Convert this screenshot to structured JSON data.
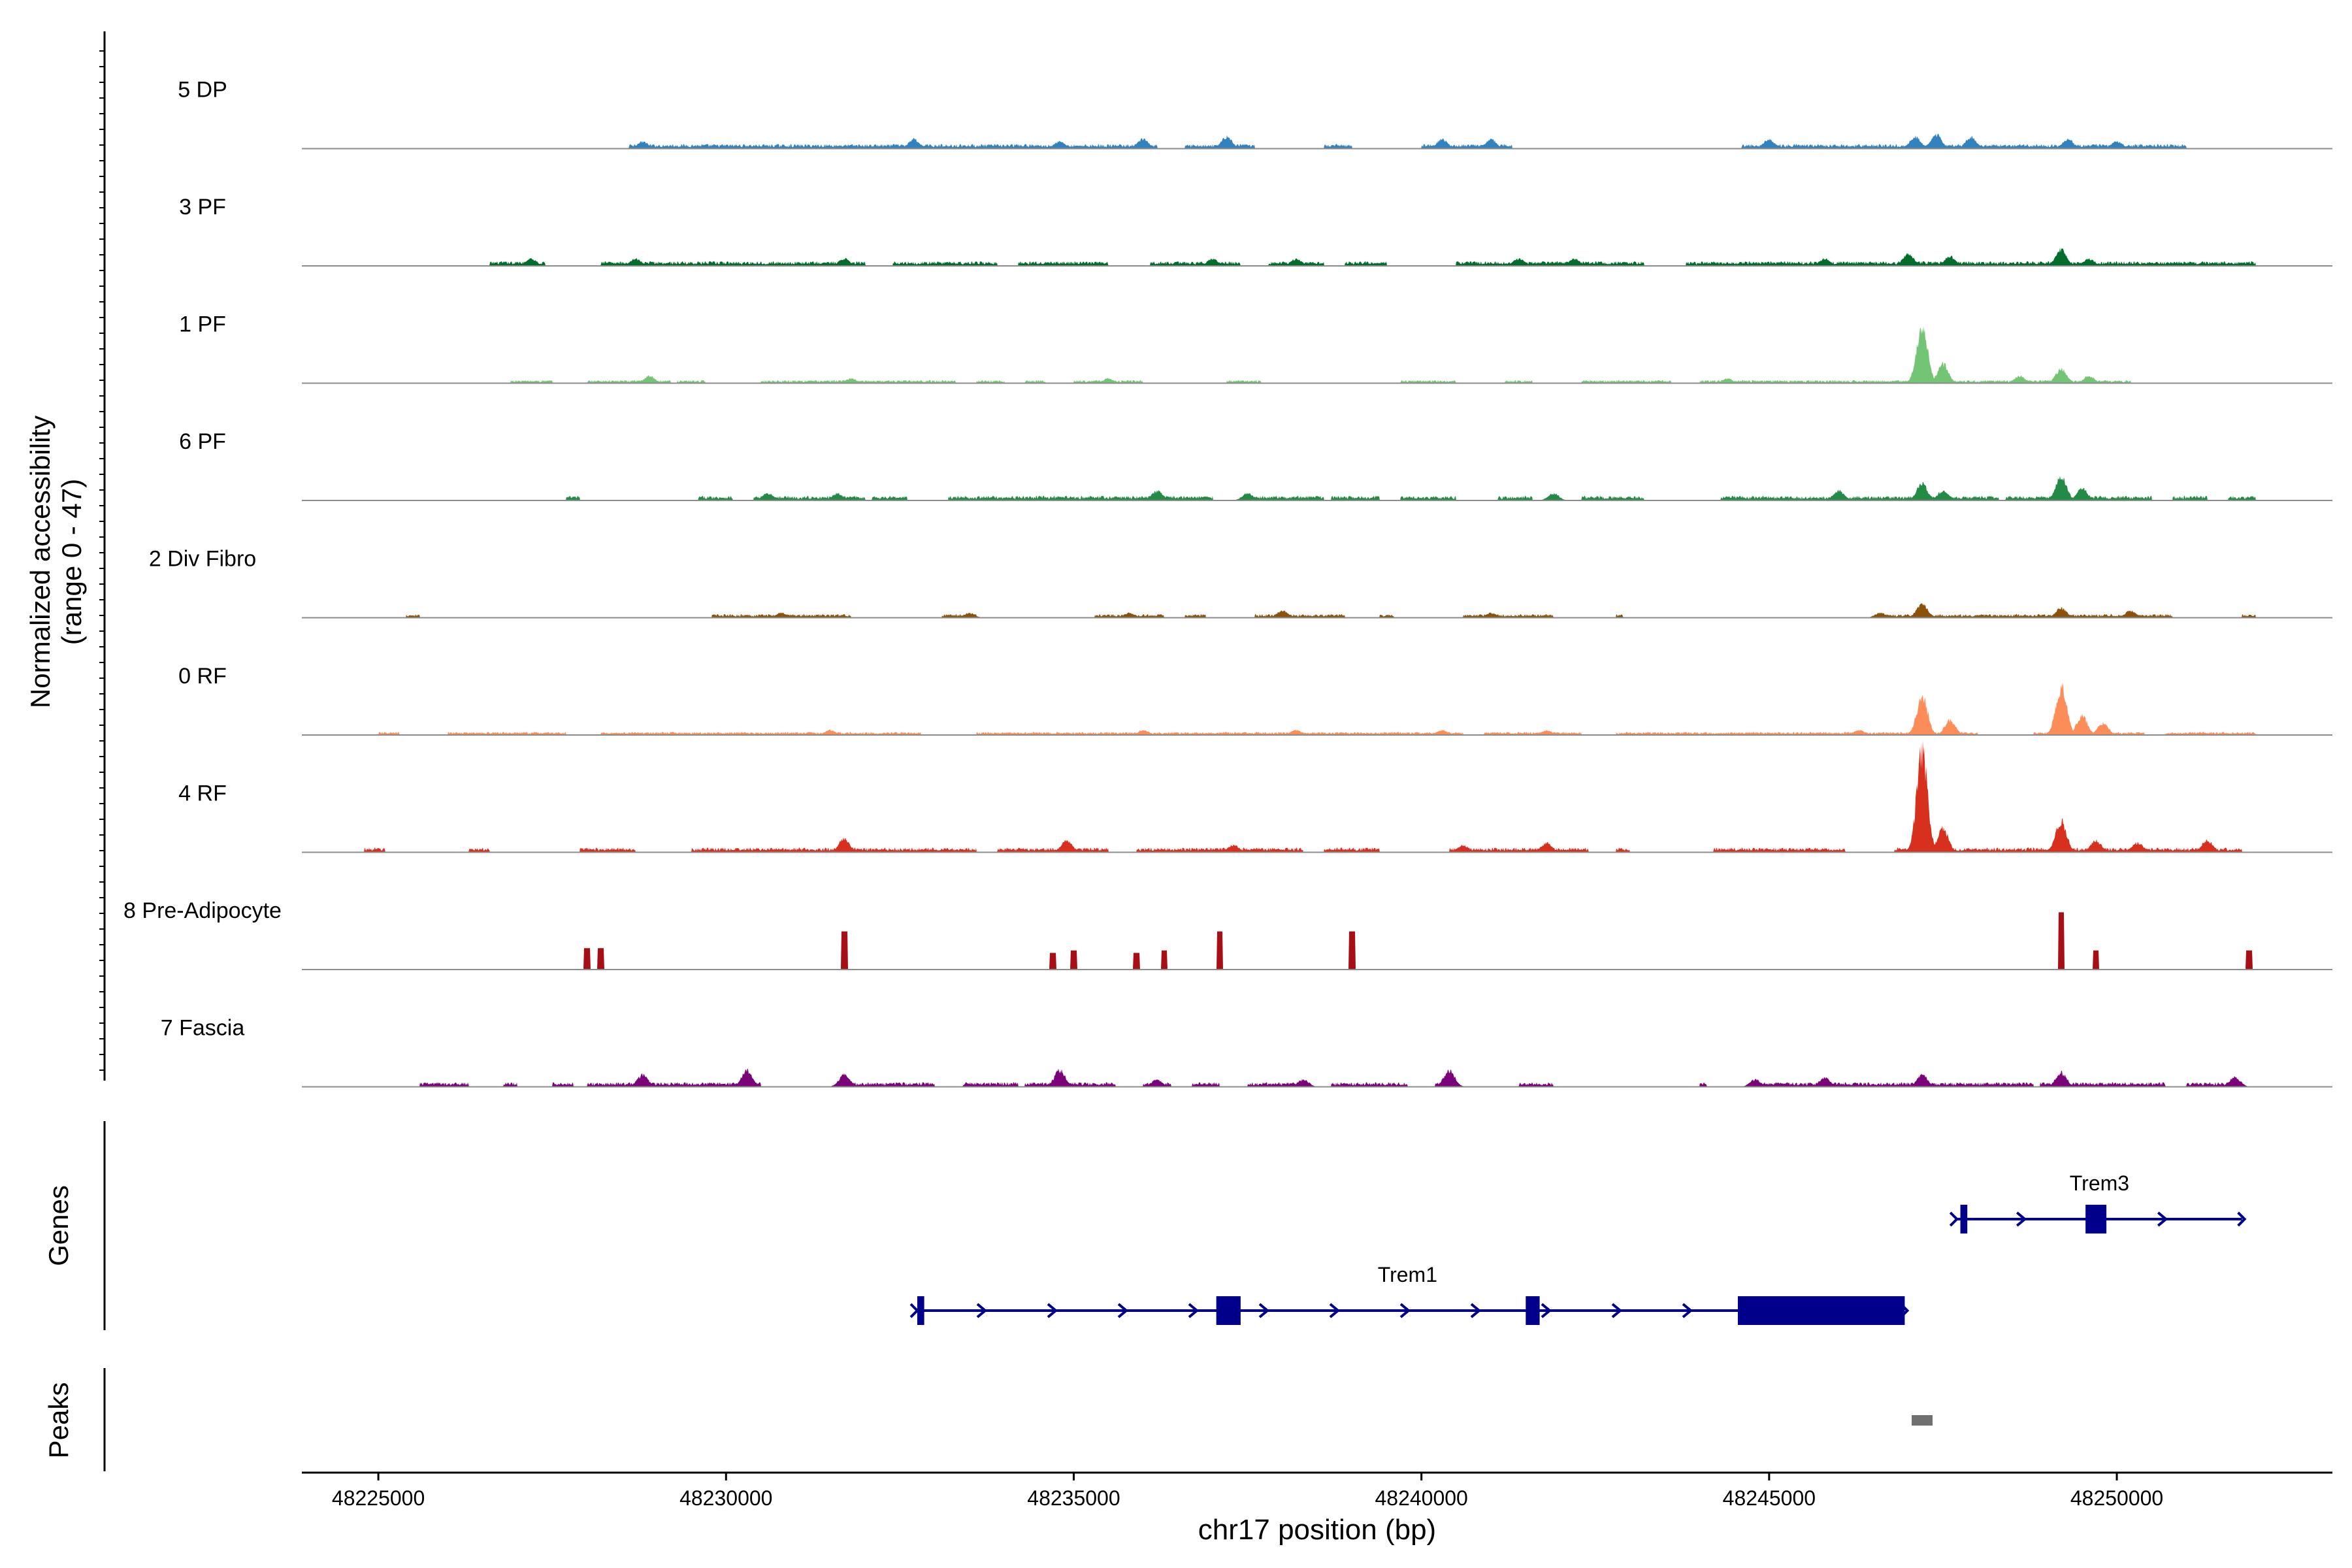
{
  "chart_data": {
    "type": "area",
    "title": "",
    "xlabel": "chr17 position (bp)",
    "ylabel_line1": "Normalized accessibility",
    "ylabel_line2": "(range 0 - 47)",
    "xlim": [
      48223900,
      48253100
    ],
    "ylim": [
      0,
      47
    ],
    "x_ticks": [
      48225000,
      48230000,
      48235000,
      48240000,
      48245000,
      48250000
    ],
    "x_tick_labels": [
      "48225000",
      "48230000",
      "48235000",
      "48240000",
      "48245000",
      "48250000"
    ],
    "track_labels": {
      "genes": "Genes",
      "peaks": "Peaks"
    },
    "series": [
      {
        "name": "5 DP",
        "color": "#3182bd",
        "regions": [
          [
            48228600,
            48236200
          ],
          [
            48236600,
            48237600
          ],
          [
            48238600,
            48239000
          ],
          [
            48240000,
            48241300
          ],
          [
            48244600,
            48251000
          ]
        ],
        "base": 1.5,
        "peaks": [
          [
            48228800,
            3
          ],
          [
            48232700,
            4
          ],
          [
            48234800,
            3
          ],
          [
            48236000,
            4
          ],
          [
            48237200,
            5
          ],
          [
            48240300,
            4
          ],
          [
            48241000,
            4
          ],
          [
            48245000,
            4
          ],
          [
            48247100,
            5
          ],
          [
            48247400,
            6
          ],
          [
            48247900,
            5
          ],
          [
            48249300,
            4
          ],
          [
            48250000,
            3
          ]
        ]
      },
      {
        "name": "3 PF",
        "color": "#006d2c",
        "regions": [
          [
            48226600,
            48227400
          ],
          [
            48228200,
            48232000
          ],
          [
            48232400,
            48233900
          ],
          [
            48234200,
            48235500
          ],
          [
            48236100,
            48237400
          ],
          [
            48237800,
            48238600
          ],
          [
            48238900,
            48239500
          ],
          [
            48240500,
            48243200
          ],
          [
            48243800,
            48252000
          ]
        ],
        "base": 1.5,
        "peaks": [
          [
            48227200,
            3
          ],
          [
            48228700,
            3
          ],
          [
            48231700,
            3
          ],
          [
            48237000,
            3
          ],
          [
            48238200,
            3
          ],
          [
            48241400,
            3
          ],
          [
            48242200,
            3
          ],
          [
            48245800,
            3
          ],
          [
            48247000,
            5
          ],
          [
            48247600,
            4
          ],
          [
            48249200,
            7
          ],
          [
            48249600,
            3
          ]
        ]
      },
      {
        "name": "1 PF",
        "color": "#74c476",
        "regions": [
          [
            48226900,
            48227500
          ],
          [
            48228000,
            48229200
          ],
          [
            48229300,
            48229700
          ],
          [
            48230500,
            48231800
          ],
          [
            48231900,
            48233300
          ],
          [
            48233600,
            48234000
          ],
          [
            48234300,
            48234600
          ],
          [
            48235000,
            48236000
          ],
          [
            48237200,
            48237700
          ],
          [
            48239700,
            48240500
          ],
          [
            48241200,
            48241600
          ],
          [
            48242300,
            48243600
          ],
          [
            48244000,
            48250200
          ]
        ],
        "base": 1,
        "peaks": [
          [
            48228900,
            3
          ],
          [
            48231800,
            2
          ],
          [
            48235500,
            2
          ],
          [
            48244400,
            2
          ],
          [
            48247200,
            24
          ],
          [
            48247500,
            8
          ],
          [
            48248600,
            3
          ],
          [
            48249200,
            6
          ],
          [
            48249600,
            3
          ]
        ]
      },
      {
        "name": "6 PF",
        "color": "#238b45",
        "regions": [
          [
            48227700,
            48227900
          ],
          [
            48229600,
            48230100
          ],
          [
            48230400,
            48232000
          ],
          [
            48232100,
            48232600
          ],
          [
            48233200,
            48237000
          ],
          [
            48237500,
            48238600
          ],
          [
            48238700,
            48239400
          ],
          [
            48239700,
            48240500
          ],
          [
            48241100,
            48241600
          ],
          [
            48242300,
            48243200
          ],
          [
            48244300,
            48248300
          ],
          [
            48248400,
            48250500
          ],
          [
            48250800,
            48251300
          ],
          [
            48251600,
            48252000
          ]
        ],
        "base": 1.5,
        "peaks": [
          [
            48230600,
            3
          ],
          [
            48231600,
            3
          ],
          [
            48236200,
            4
          ],
          [
            48237500,
            3
          ],
          [
            48241900,
            3
          ],
          [
            48246000,
            4
          ],
          [
            48247200,
            7
          ],
          [
            48247500,
            4
          ],
          [
            48249200,
            10
          ],
          [
            48249500,
            5
          ]
        ]
      },
      {
        "name": "2 Div Fibro",
        "color": "#8c510a",
        "regions": [
          [
            48225400,
            48225600
          ],
          [
            48229800,
            48231800
          ],
          [
            48233100,
            48233600
          ],
          [
            48235300,
            48236300
          ],
          [
            48236600,
            48236900
          ],
          [
            48237600,
            48238900
          ],
          [
            48239400,
            48239600
          ],
          [
            48240600,
            48241900
          ],
          [
            48242800,
            48242900
          ],
          [
            48246500,
            48250800
          ],
          [
            48251800,
            48252000
          ]
        ],
        "base": 1.2,
        "peaks": [
          [
            48230800,
            2
          ],
          [
            48233500,
            2
          ],
          [
            48235800,
            2
          ],
          [
            48238000,
            3
          ],
          [
            48241000,
            2
          ],
          [
            48246600,
            2
          ],
          [
            48247200,
            6
          ],
          [
            48249200,
            4
          ],
          [
            48250200,
            3
          ]
        ]
      },
      {
        "name": "0 RF",
        "color": "#fc8d59",
        "regions": [
          [
            48225000,
            48225300
          ],
          [
            48226000,
            48227700
          ],
          [
            48228200,
            48232800
          ],
          [
            48233600,
            48240600
          ],
          [
            48240900,
            48242300
          ],
          [
            48242800,
            48246600
          ],
          [
            48246600,
            48248000
          ],
          [
            48248800,
            48250400
          ],
          [
            48250700,
            48252000
          ]
        ],
        "base": 1,
        "peaks": [
          [
            48231500,
            2
          ],
          [
            48236000,
            2
          ],
          [
            48238200,
            2
          ],
          [
            48240300,
            2
          ],
          [
            48241800,
            2
          ],
          [
            48246300,
            2
          ],
          [
            48247200,
            16
          ],
          [
            48247600,
            6
          ],
          [
            48249200,
            20
          ],
          [
            48249500,
            8
          ],
          [
            48249800,
            5
          ]
        ]
      },
      {
        "name": "4 RF",
        "color": "#d7301f",
        "regions": [
          [
            48224800,
            48225100
          ],
          [
            48226300,
            48226600
          ],
          [
            48227900,
            48228700
          ],
          [
            48229500,
            48233600
          ],
          [
            48233900,
            48235500
          ],
          [
            48235900,
            48238300
          ],
          [
            48238600,
            48239400
          ],
          [
            48240400,
            48242400
          ],
          [
            48242800,
            48243000
          ],
          [
            48244200,
            48246100
          ],
          [
            48246800,
            48251800
          ]
        ],
        "base": 1.5,
        "peaks": [
          [
            48231700,
            6
          ],
          [
            48234900,
            5
          ],
          [
            48237300,
            3
          ],
          [
            48240600,
            3
          ],
          [
            48241800,
            4
          ],
          [
            48247200,
            42
          ],
          [
            48247500,
            10
          ],
          [
            48249200,
            13
          ],
          [
            48249700,
            5
          ],
          [
            48250300,
            4
          ],
          [
            48251300,
            5
          ]
        ]
      },
      {
        "name": "8 Pre-Adipocyte",
        "color": "#a50f15",
        "regions": [],
        "base": 0,
        "peaks": [
          [
            48228000,
            9
          ],
          [
            48228200,
            9
          ],
          [
            48231700,
            16
          ],
          [
            48234700,
            7
          ],
          [
            48235000,
            8
          ],
          [
            48235900,
            7
          ],
          [
            48236300,
            8
          ],
          [
            48237100,
            16
          ],
          [
            48239000,
            16
          ],
          [
            48249200,
            24
          ],
          [
            48249700,
            8
          ],
          [
            48251900,
            8
          ]
        ]
      },
      {
        "name": "7 Fascia",
        "color": "#7a0177",
        "regions": [
          [
            48225600,
            48226300
          ],
          [
            48226800,
            48227000
          ],
          [
            48227500,
            48227800
          ],
          [
            48228000,
            48230500
          ],
          [
            48231700,
            48233000
          ],
          [
            48233400,
            48234200
          ],
          [
            48234300,
            48235600
          ],
          [
            48236000,
            48236400
          ],
          [
            48236700,
            48237100
          ],
          [
            48237500,
            48238400
          ],
          [
            48238700,
            48239800
          ],
          [
            48240200,
            48240500
          ],
          [
            48241400,
            48241900
          ],
          [
            48244000,
            48244100
          ],
          [
            48244700,
            48248800
          ],
          [
            48248900,
            48250700
          ],
          [
            48251000,
            48251800
          ]
        ],
        "base": 1.5,
        "peaks": [
          [
            48228800,
            5
          ],
          [
            48230300,
            7
          ],
          [
            48231700,
            5
          ],
          [
            48234800,
            7
          ],
          [
            48236200,
            3
          ],
          [
            48238300,
            3
          ],
          [
            48240400,
            7
          ],
          [
            48244800,
            3
          ],
          [
            48245800,
            4
          ],
          [
            48247200,
            5
          ],
          [
            48249200,
            6
          ],
          [
            48251700,
            4
          ]
        ]
      }
    ],
    "genes": [
      {
        "name": "Trem1",
        "color": "#00008b",
        "start": 48232750,
        "end": 48246950,
        "strand": "+",
        "row": 2,
        "exons": [
          [
            48232750,
            48232850
          ],
          [
            48237050,
            48237400
          ],
          [
            48241500,
            48241700
          ],
          [
            48244550,
            48246950
          ]
        ]
      },
      {
        "name": "Trem3",
        "color": "#00008b",
        "start": 48247700,
        "end": 48251800,
        "strand": "+",
        "row": 1,
        "exons": [
          [
            48247750,
            48247850
          ],
          [
            48249550,
            48249850
          ]
        ]
      }
    ],
    "peaks_track": [
      {
        "start": 48247050,
        "end": 48247350,
        "color": "#707070"
      }
    ]
  }
}
